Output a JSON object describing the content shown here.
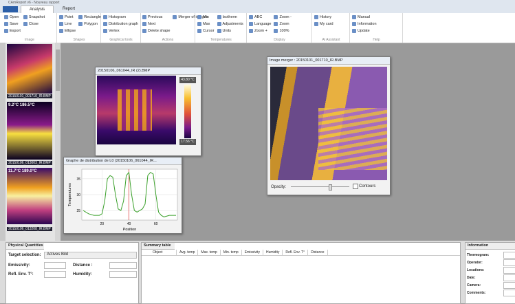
{
  "title_bar": "CAmReport v6 - Nouveau rapport",
  "tabs": [
    "Analysis",
    "Report"
  ],
  "ribbon": {
    "groups": [
      {
        "label": "Image",
        "items": [
          "Open",
          "Save",
          "Export",
          "Snapshot",
          "Close"
        ]
      },
      {
        "label": "Shapes",
        "items": [
          "Point",
          "Line",
          "Ellipse",
          "Rectangle",
          "Polygon"
        ]
      },
      {
        "label": "Graphical tools",
        "items": [
          "Histogram",
          "Distribution graph",
          "Vertex"
        ]
      },
      {
        "label": "Actions",
        "items": [
          "Previous",
          "Next",
          "Delete shape",
          "Merger of images"
        ]
      },
      {
        "label": "Temperatures",
        "items": [
          "Min",
          "Max",
          "Cursor",
          "Isotherm",
          "Adjustments",
          "Units"
        ]
      },
      {
        "label": "Display",
        "items": [
          "ABC",
          "Language",
          "Zoom +",
          "Zoom -",
          "Zoom",
          "100%"
        ]
      },
      {
        "label": "AI Assistant",
        "items": [
          "History",
          "My card"
        ]
      },
      {
        "label": "Help",
        "items": [
          "Manual",
          "Information",
          "Update"
        ]
      }
    ]
  },
  "thumbnails": [
    {
      "file": "20150101_001710_IR.BMP"
    },
    {
      "overlay": "9.2°C  186.5°C",
      "file": "20150106_013003_IR.BMP"
    },
    {
      "overlay": "11.7°C  189.0°C",
      "file": "20150106_013208_IR.BMP"
    }
  ],
  "image_window": {
    "title": "20150106_061044_IR (2).BMP",
    "scale_max": "43.80 °C",
    "scale_min": "17.56 °C"
  },
  "graph_window": {
    "title": "Graphe de distribution de L0 (20150106_061044_IR...",
    "y_label": "Temperatures",
    "x_label": "Position",
    "xlim": [
      5,
      76
    ],
    "ylim": [
      22,
      38
    ],
    "xticks": [
      20,
      40,
      60
    ],
    "yticks": [
      25,
      30,
      35
    ],
    "cursor": 40,
    "x": [
      6,
      10,
      14,
      18,
      20,
      22,
      24,
      26,
      28,
      30,
      32,
      34,
      36,
      38,
      40,
      42,
      44,
      46,
      48,
      50,
      52,
      54,
      56,
      58,
      60,
      62,
      64,
      66,
      70,
      75
    ],
    "values": [
      25,
      24,
      23.5,
      23.5,
      24,
      28,
      35,
      36,
      35.5,
      30,
      25.5,
      25,
      28,
      36,
      37,
      30,
      25,
      24.5,
      25,
      25.5,
      27,
      36,
      37,
      36.5,
      30,
      24.5,
      23.5,
      23,
      23.5,
      23.5
    ],
    "color": "#3aa02a"
  },
  "merger_window": {
    "title": "Image merger : 20150101_001710_IR.BMP",
    "opacity": "Opacity:",
    "contours": "Contours"
  },
  "physical": {
    "title": "Physical Quantities",
    "target": "Target selection:",
    "target_value": "Actives Bild",
    "emissivity": "Emissivity:",
    "distance": "Distance :",
    "refl": "Refl. Env. T°:",
    "humidity": "Humidity:"
  },
  "summary": {
    "title": "Summary table",
    "columns": [
      "Object",
      "Avg. temp",
      "Max. temp",
      "Min. temp",
      "Emissivity",
      "Humidity",
      "Refl. Env. T°",
      "Distance"
    ]
  },
  "information": {
    "title": "Information",
    "fields": [
      "Thermogram:",
      "Operator:",
      "Locations:",
      "Date:",
      "Camera:",
      "Comments:"
    ]
  }
}
